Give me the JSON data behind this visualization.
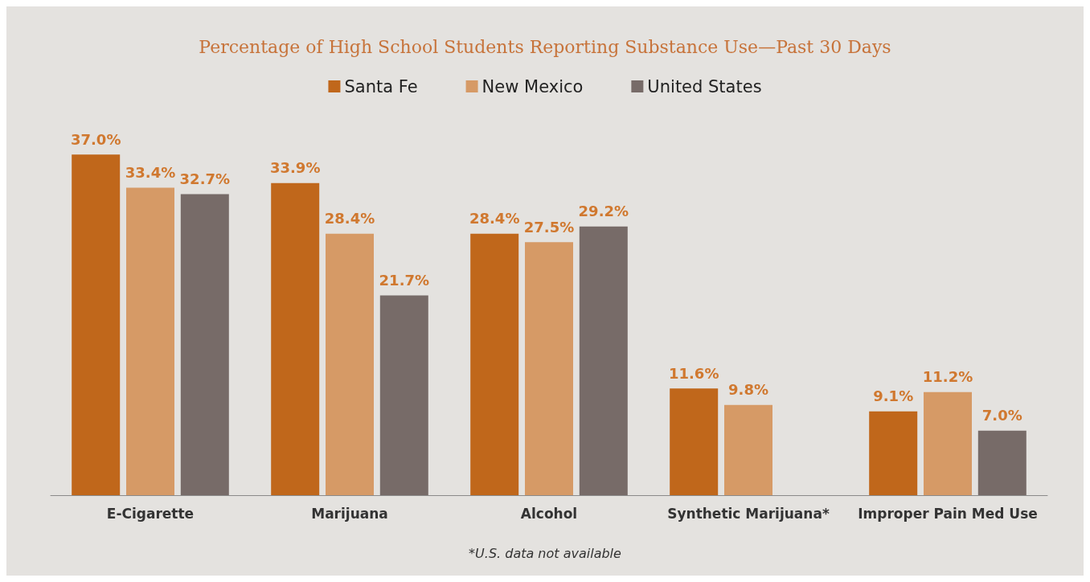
{
  "chart_data": {
    "type": "bar",
    "title": "Percentage of High School Students Reporting Substance Use—Past 30 Days",
    "categories": [
      "E-Cigarette",
      "Marijuana",
      "Alcohol",
      "Synthetic Marijuana*",
      "Improper Pain Med Use"
    ],
    "series": [
      {
        "name": "Santa Fe",
        "color": "#c0671b",
        "values": [
          37.0,
          33.9,
          28.4,
          11.6,
          9.1
        ],
        "value_labels": [
          "37.0%",
          "33.9%",
          "28.4%",
          "11.6%",
          "9.1%"
        ]
      },
      {
        "name": "New Mexico",
        "color": "#d69a66",
        "values": [
          33.4,
          28.4,
          27.5,
          9.8,
          11.2
        ],
        "value_labels": [
          "33.4%",
          "28.4%",
          "27.5%",
          "9.8%",
          "11.2%"
        ]
      },
      {
        "name": "United States",
        "color": "#776b68",
        "values": [
          32.7,
          21.7,
          29.2,
          null,
          7.0
        ],
        "value_labels": [
          "32.7%",
          "21.7%",
          "29.2%",
          null,
          "7.0%"
        ]
      }
    ],
    "legend": "top",
    "annotations": [
      "*U.S. data not available"
    ]
  }
}
